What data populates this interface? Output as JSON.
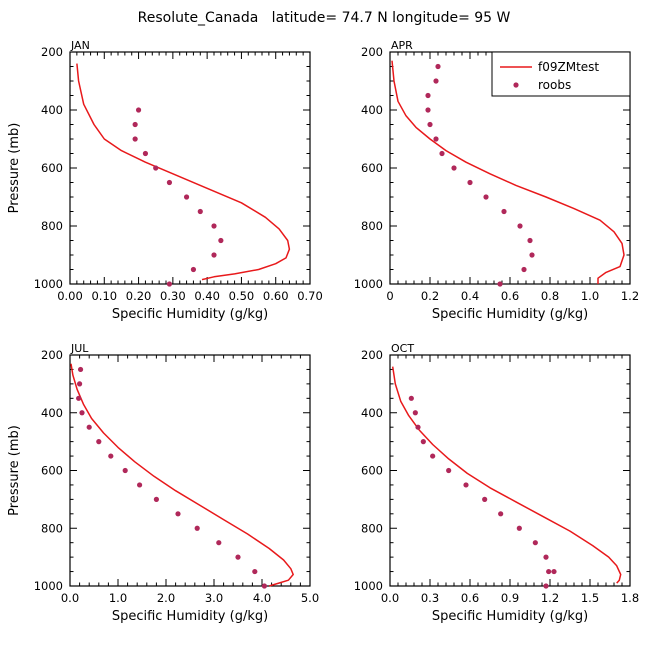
{
  "figure_title": "Resolute_Canada   latitude= 74.7 N longitude= 95 W",
  "colors": {
    "model": "#e8191b",
    "obs": "#b0285a",
    "axis": "#000000"
  },
  "chart_data": [
    {
      "type": "line",
      "panel_label": "JAN",
      "xlabel": "Specific Humidity (g/kg)",
      "ylabel": "Pressure (mb)",
      "xlim": [
        0,
        0.7
      ],
      "xticks": [
        0,
        0.1,
        0.2,
        0.3,
        0.4,
        0.5,
        0.6,
        0.7
      ],
      "xtick_labels": [
        "0.00",
        "0.10",
        "0.20",
        "0.30",
        "0.40",
        "0.50",
        "0.60",
        "0.70"
      ],
      "ylim": [
        1000,
        200
      ],
      "yticks": [
        200,
        400,
        600,
        800,
        1000
      ],
      "legend": null,
      "series": [
        {
          "name": "f09ZMtest",
          "kind": "line",
          "x": [
            0.02,
            0.025,
            0.04,
            0.07,
            0.1,
            0.15,
            0.22,
            0.3,
            0.4,
            0.5,
            0.57,
            0.61,
            0.635,
            0.64,
            0.63,
            0.6,
            0.55,
            0.48,
            0.42,
            0.385
          ],
          "y": [
            240,
            300,
            380,
            450,
            500,
            540,
            580,
            620,
            670,
            720,
            770,
            810,
            850,
            880,
            910,
            930,
            950,
            965,
            975,
            985
          ]
        },
        {
          "name": "roobs",
          "kind": "scatter",
          "x": [
            0.2,
            0.19,
            0.19,
            0.22,
            0.25,
            0.29,
            0.34,
            0.38,
            0.42,
            0.44,
            0.42,
            0.36,
            0.29
          ],
          "y": [
            400,
            450,
            500,
            550,
            600,
            650,
            700,
            750,
            800,
            850,
            900,
            950,
            1000
          ]
        }
      ]
    },
    {
      "type": "line",
      "panel_label": "APR",
      "xlabel": "Specific Humidity (g/kg)",
      "ylabel": "",
      "xlim": [
        0,
        1.2
      ],
      "xticks": [
        0,
        0.2,
        0.4,
        0.6,
        0.8,
        1.0,
        1.2
      ],
      "xtick_labels": [
        "0",
        "0.2",
        "0.4",
        "0.6",
        "0.8",
        "1.0",
        "1.2"
      ],
      "ylim": [
        1000,
        200
      ],
      "yticks": [
        200,
        400,
        600,
        800,
        1000
      ],
      "legend": {
        "position": "top-right",
        "entries": [
          "f09ZMtest",
          "roobs"
        ]
      },
      "series": [
        {
          "name": "f09ZMtest",
          "kind": "line",
          "x": [
            0.01,
            0.02,
            0.04,
            0.08,
            0.13,
            0.2,
            0.28,
            0.38,
            0.5,
            0.63,
            0.78,
            0.92,
            1.05,
            1.12,
            1.16,
            1.17,
            1.15,
            1.08,
            1.04,
            1.04
          ],
          "y": [
            230,
            300,
            370,
            420,
            460,
            500,
            540,
            580,
            620,
            660,
            700,
            740,
            780,
            820,
            860,
            900,
            940,
            960,
            980,
            1000
          ]
        },
        {
          "name": "roobs",
          "kind": "scatter",
          "x": [
            0.24,
            0.23,
            0.19,
            0.19,
            0.2,
            0.23,
            0.26,
            0.32,
            0.4,
            0.48,
            0.57,
            0.65,
            0.7,
            0.71,
            0.67,
            0.55
          ],
          "y": [
            250,
            300,
            350,
            400,
            450,
            500,
            550,
            600,
            650,
            700,
            750,
            800,
            850,
            900,
            950,
            1000
          ]
        }
      ]
    },
    {
      "type": "line",
      "panel_label": "JUL",
      "xlabel": "Specific Humidity (g/kg)",
      "ylabel": "Pressure (mb)",
      "xlim": [
        0,
        5.0
      ],
      "xticks": [
        0,
        1.0,
        2.0,
        3.0,
        4.0,
        5.0
      ],
      "xtick_labels": [
        "0.0",
        "1.0",
        "2.0",
        "3.0",
        "4.0",
        "5.0"
      ],
      "ylim": [
        1000,
        200
      ],
      "yticks": [
        200,
        400,
        600,
        800,
        1000
      ],
      "legend": null,
      "series": [
        {
          "name": "f09ZMtest",
          "kind": "line",
          "x": [
            0.02,
            0.06,
            0.15,
            0.28,
            0.45,
            0.7,
            1.0,
            1.35,
            1.75,
            2.2,
            2.7,
            3.2,
            3.7,
            4.15,
            4.45,
            4.6,
            4.65,
            4.55,
            4.35,
            4.15
          ],
          "y": [
            230,
            270,
            320,
            370,
            420,
            470,
            520,
            570,
            620,
            670,
            720,
            770,
            820,
            870,
            910,
            940,
            960,
            980,
            990,
            1000
          ]
        },
        {
          "name": "roobs",
          "kind": "scatter",
          "x": [
            0.22,
            0.2,
            0.18,
            0.25,
            0.4,
            0.6,
            0.85,
            1.15,
            1.45,
            1.8,
            2.25,
            2.65,
            3.1,
            3.5,
            3.85,
            4.05
          ],
          "y": [
            250,
            300,
            350,
            400,
            450,
            500,
            550,
            600,
            650,
            700,
            750,
            800,
            850,
            900,
            950,
            1000
          ]
        }
      ]
    },
    {
      "type": "line",
      "panel_label": "OCT",
      "xlabel": "Specific Humidity (g/kg)",
      "ylabel": "",
      "xlim": [
        0,
        1.8
      ],
      "xticks": [
        0,
        0.3,
        0.6,
        0.9,
        1.2,
        1.5,
        1.8
      ],
      "xtick_labels": [
        "0.0",
        "0.3",
        "0.6",
        "0.9",
        "1.2",
        "1.5",
        "1.8"
      ],
      "ylim": [
        1000,
        200
      ],
      "yticks": [
        200,
        400,
        600,
        800,
        1000
      ],
      "legend": null,
      "series": [
        {
          "name": "f09ZMtest",
          "kind": "line",
          "x": [
            0.02,
            0.04,
            0.08,
            0.14,
            0.22,
            0.32,
            0.44,
            0.58,
            0.75,
            0.95,
            1.15,
            1.35,
            1.52,
            1.64,
            1.7,
            1.73,
            1.72,
            1.7
          ],
          "y": [
            240,
            300,
            360,
            410,
            460,
            510,
            560,
            610,
            660,
            710,
            760,
            810,
            860,
            900,
            930,
            960,
            980,
            990
          ]
        },
        {
          "name": "roobs",
          "kind": "scatter",
          "x": [
            0.16,
            0.19,
            0.21,
            0.25,
            0.32,
            0.44,
            0.57,
            0.71,
            0.83,
            0.97,
            1.09,
            1.17,
            1.19,
            1.23,
            1.17
          ],
          "y": [
            350,
            400,
            450,
            500,
            550,
            600,
            650,
            700,
            750,
            800,
            850,
            900,
            950,
            950,
            1000
          ]
        }
      ]
    }
  ]
}
